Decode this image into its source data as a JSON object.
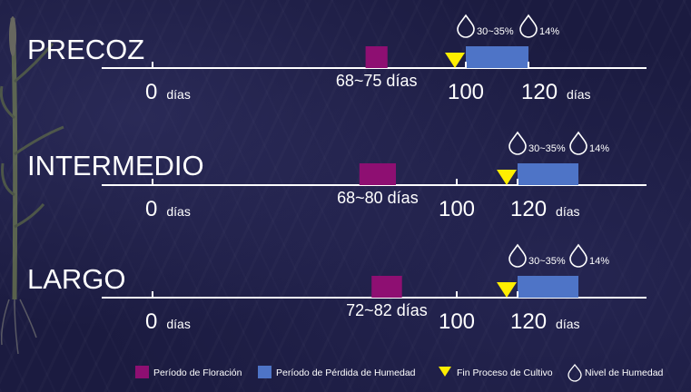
{
  "chart_data": {
    "type": "timeline",
    "colors": {
      "flowering": "#8e0f72",
      "moisture_loss": "#4e74c7",
      "end_marker": "#ffee00",
      "axis": "#ffffff"
    },
    "rows": [
      {
        "name": "PRECOZ",
        "ticks": [
          {
            "value": 0,
            "num": "0",
            "unit": "días"
          },
          {
            "value": 100,
            "num": "100",
            "unit": ""
          },
          {
            "value": 120,
            "num": "120",
            "unit": "días"
          }
        ],
        "flowering": {
          "start": 68,
          "end": 75,
          "label": "68~75 días"
        },
        "end_process": 100,
        "moisture_loss": {
          "start": 100,
          "end": 120
        },
        "moisture_levels": [
          {
            "at": 100,
            "label": "30~35%"
          },
          {
            "at": 120,
            "label": "14%"
          }
        ]
      },
      {
        "name": "INTERMEDIO",
        "ticks": [
          {
            "value": 0,
            "num": "0",
            "unit": "días"
          },
          {
            "value": 100,
            "num": "100",
            "unit": ""
          },
          {
            "value": 120,
            "num": "120",
            "unit": "días"
          }
        ],
        "flowering": {
          "start": 68,
          "end": 80,
          "label": "68~80 días"
        },
        "end_process": 120,
        "moisture_loss": {
          "start": 120,
          "end": 140
        },
        "moisture_levels": [
          {
            "at": 120,
            "label": "30~35%"
          },
          {
            "at": 140,
            "label": "14%"
          }
        ]
      },
      {
        "name": "LARGO",
        "ticks": [
          {
            "value": 0,
            "num": "0",
            "unit": "días"
          },
          {
            "value": 100,
            "num": "100",
            "unit": ""
          },
          {
            "value": 120,
            "num": "120",
            "unit": "días"
          }
        ],
        "flowering": {
          "start": 72,
          "end": 82,
          "label": "72~82 días"
        },
        "end_process": 120,
        "moisture_loss": {
          "start": 120,
          "end": 140
        },
        "moisture_levels": [
          {
            "at": 120,
            "label": "30~35%"
          },
          {
            "at": 140,
            "label": "14%"
          }
        ]
      }
    ],
    "legend": [
      {
        "key": "flowering",
        "label": "Período de Floración"
      },
      {
        "key": "moisture_loss",
        "label": "Período de Pérdida de Humedad"
      },
      {
        "key": "end_marker",
        "label": "Fin Proceso de Cultivo"
      },
      {
        "key": "moisture_drop",
        "label": "Nivel de Humedad"
      }
    ]
  }
}
